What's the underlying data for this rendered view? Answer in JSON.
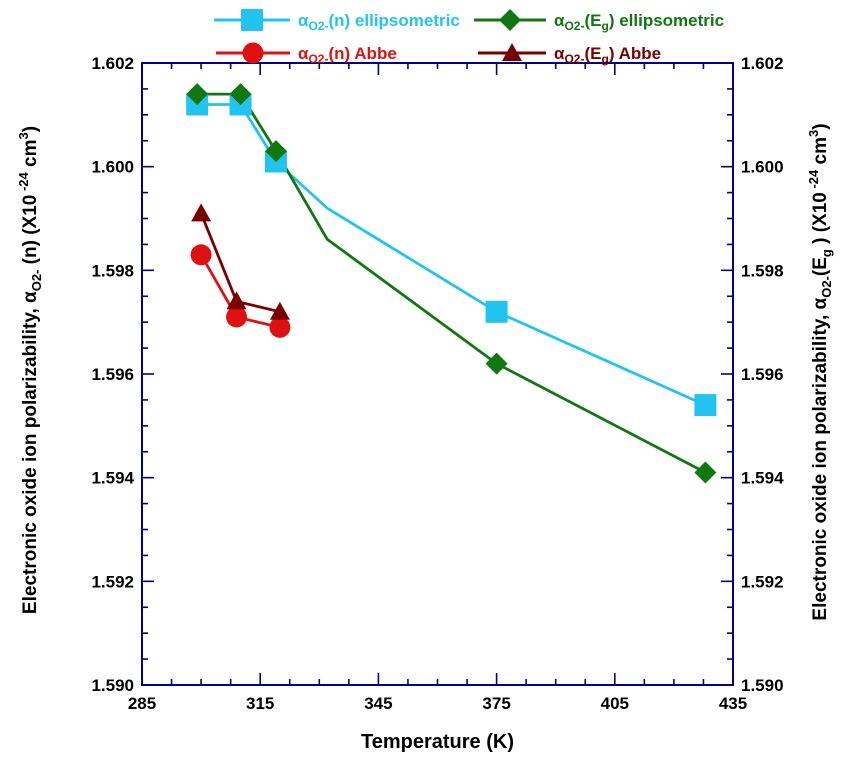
{
  "chart_data": {
    "type": "line",
    "xlabel": "Temperature (K)",
    "ylabel_left": {
      "prefix": "Electronic oxide ion polarizability,",
      "alpha": "α",
      "alpha_sub": "O2-",
      "arg": "(n)",
      "unit_pre": "(X10",
      "unit_exp": "-24",
      "unit_mid": "cm",
      "unit_exp2": "3",
      "unit_post": ")"
    },
    "ylabel_right": {
      "prefix": "Electronic oxide ion polarizability,",
      "alpha": "α",
      "alpha_sub": "O2-",
      "arg_pre": "(E",
      "arg_sub": "g",
      "arg_post": ")",
      "unit_pre": "(X10",
      "unit_exp": "-24",
      "unit_mid": "cm",
      "unit_exp2": "3",
      "unit_post": ")"
    },
    "xlim": [
      285,
      435
    ],
    "ylim": [
      1.59,
      1.602
    ],
    "x_ticks": [
      "285",
      "315",
      "345",
      "375",
      "405",
      "435"
    ],
    "y_ticks": [
      "1.590",
      "1.592",
      "1.594",
      "1.596",
      "1.598",
      "1.600",
      "1.602"
    ],
    "legend_position": "top",
    "colors": {
      "axis": "#00008B",
      "cyan": "#22C3EE",
      "green": "#117711",
      "red": "#DD1111",
      "darkred": "#7A0000"
    },
    "series": [
      {
        "label_alpha": "α",
        "label_sub": "O2-",
        "label_arg": "(n)",
        "label_arg_sub": "",
        "label_arg_post": "",
        "label_method": "ellipsometric",
        "marker": "square",
        "color": "#22C3EE",
        "x": [
          299,
          310,
          319,
          375,
          428
        ],
        "y": [
          1.6012,
          1.6012,
          1.6001,
          1.5972,
          1.5954
        ],
        "line_x": [
          299,
          310,
          319,
          332,
          375,
          428
        ],
        "line_y": [
          1.6012,
          1.6012,
          1.6001,
          1.5992,
          1.5972,
          1.5954
        ]
      },
      {
        "label_alpha": "α",
        "label_sub": "O2-",
        "label_arg": "(E",
        "label_arg_sub": "g",
        "label_arg_post": ")",
        "label_method": "ellipsometric",
        "marker": "diamond",
        "color": "#117711",
        "x": [
          299,
          310,
          319,
          375,
          428
        ],
        "y": [
          1.6014,
          1.6014,
          1.6003,
          1.5962,
          1.5941
        ],
        "line_x": [
          299,
          310,
          319,
          332,
          375,
          428
        ],
        "line_y": [
          1.6014,
          1.6014,
          1.6003,
          1.5986,
          1.5962,
          1.5941
        ]
      },
      {
        "label_alpha": "α",
        "label_sub": "O2-",
        "label_arg": "(n)",
        "label_arg_sub": "",
        "label_arg_post": "",
        "label_method": "Abbe",
        "marker": "circle",
        "color": "#DD1111",
        "x": [
          300,
          309,
          320
        ],
        "y": [
          1.5983,
          1.5971,
          1.5969
        ],
        "line_x": [
          300,
          309,
          320
        ],
        "line_y": [
          1.5983,
          1.5971,
          1.5969
        ]
      },
      {
        "label_alpha": "α",
        "label_sub": "O2-",
        "label_arg": "(E",
        "label_arg_sub": "g",
        "label_arg_post": ")",
        "label_method": "Abbe",
        "marker": "triangle",
        "color": "#7A0000",
        "x": [
          300,
          309,
          320
        ],
        "y": [
          1.5991,
          1.5974,
          1.5972
        ],
        "line_x": [
          300,
          309,
          320
        ],
        "line_y": [
          1.5991,
          1.5974,
          1.5972
        ]
      }
    ]
  }
}
